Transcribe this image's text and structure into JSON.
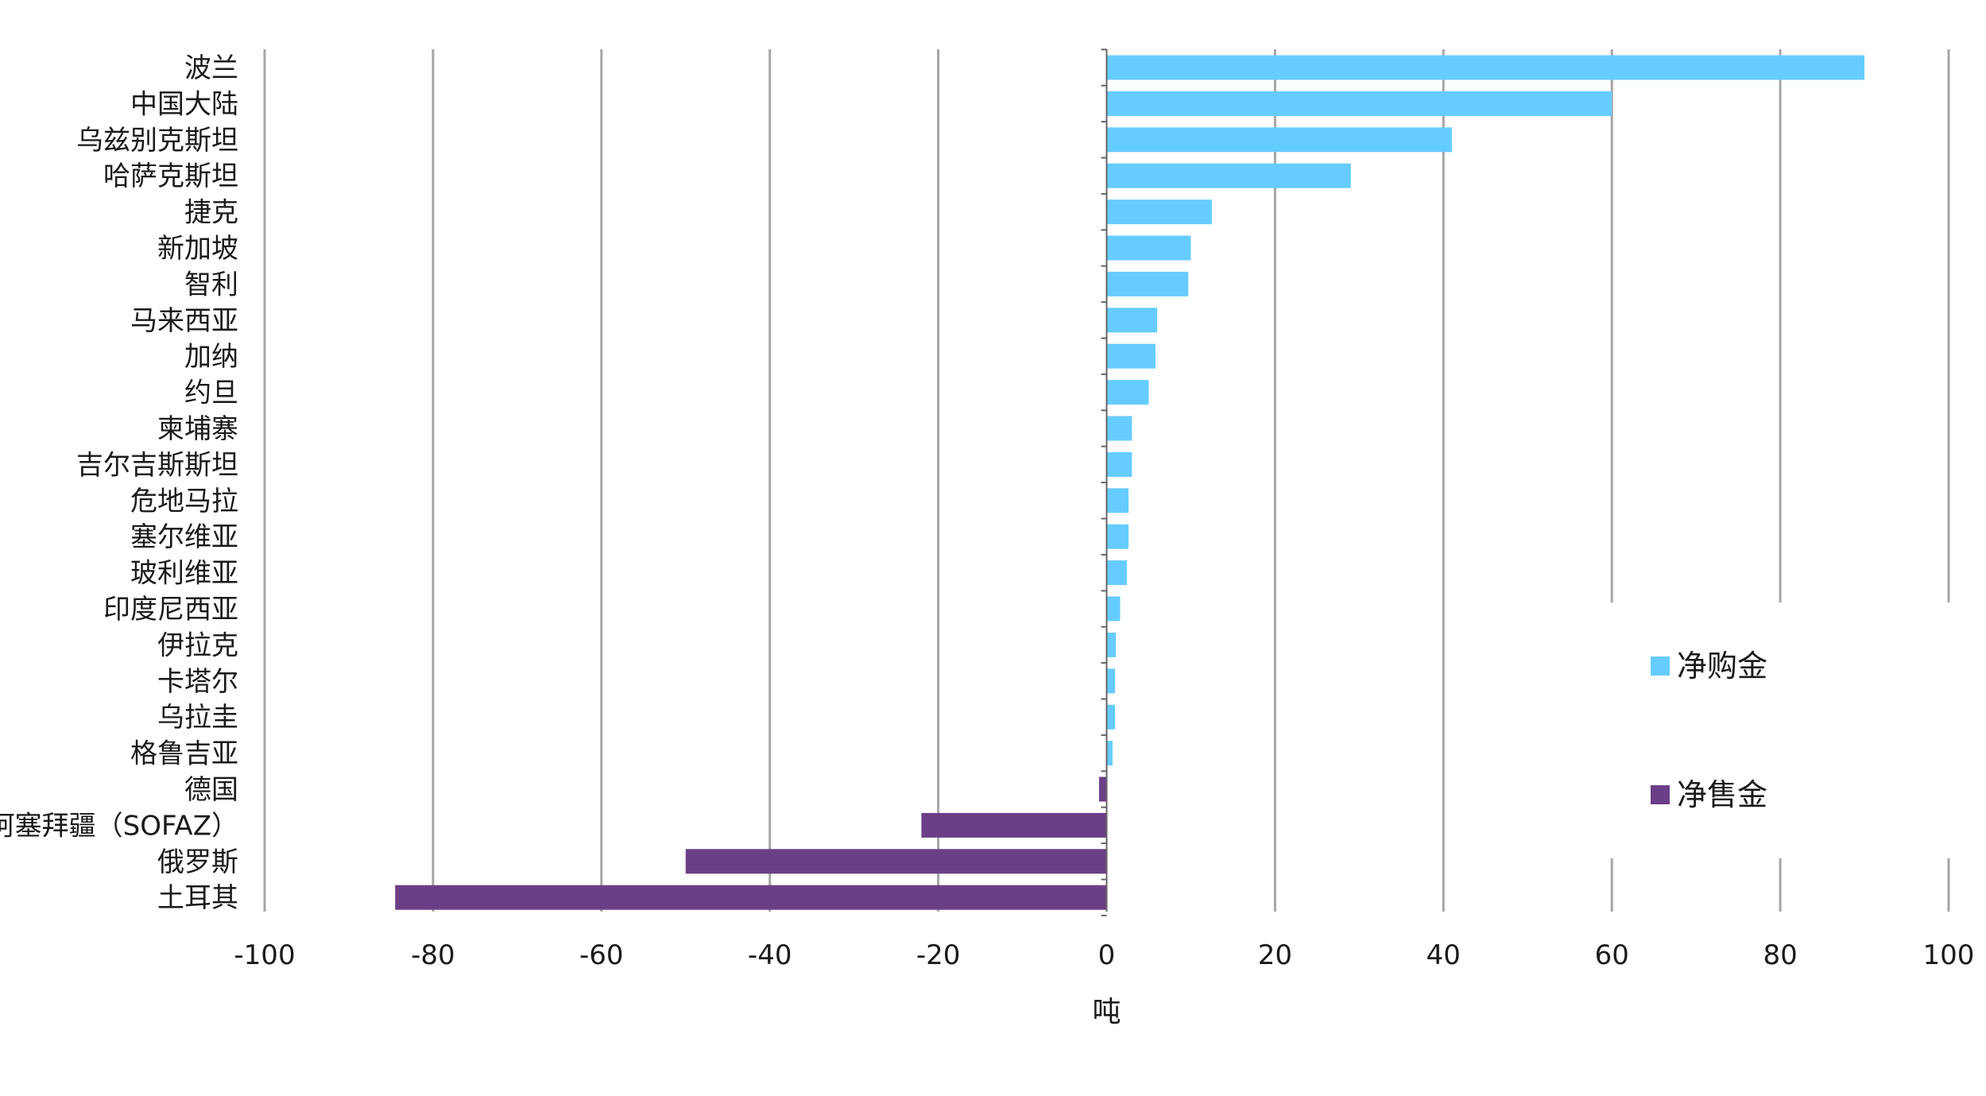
{
  "chart_data": {
    "type": "bar",
    "orientation": "horizontal",
    "title": "",
    "xlabel": "吨",
    "ylabel": "",
    "xlim": [
      -100,
      100
    ],
    "xticks": [
      -100,
      -80,
      -60,
      -40,
      -20,
      0,
      20,
      40,
      60,
      80,
      100
    ],
    "xtick_labels": [
      "-100",
      "-80",
      "-60",
      "-40",
      "-20",
      "0",
      "20",
      "40",
      "60",
      "80",
      "100"
    ],
    "grid": "vertical",
    "legend_position": "right",
    "categories": [
      "波兰",
      "中国大陆",
      "乌兹别克斯坦",
      "哈萨克斯坦",
      "捷克",
      "新加坡",
      "智利",
      "马来西亚",
      "加纳",
      "约旦",
      "柬埔寨",
      "吉尔吉斯斯坦",
      "危地马拉",
      "塞尔维亚",
      "玻利维亚",
      "印度尼西亚",
      "伊拉克",
      "卡塔尔",
      "乌拉圭",
      "格鲁吉亚",
      "德国",
      "阿塞拜疆（SOFAZ）",
      "俄罗斯",
      "土耳其"
    ],
    "values": [
      90,
      60,
      41,
      29,
      12.5,
      10,
      9.7,
      6,
      5.8,
      5,
      3,
      3,
      2.6,
      2.6,
      2.4,
      1.6,
      1.1,
      1,
      1,
      0.7,
      -0.9,
      -22,
      -50,
      -84.5
    ],
    "series": [
      {
        "name": "净购金",
        "color": "#66CCFF"
      },
      {
        "name": "净售金",
        "color": "#6B3F87"
      }
    ],
    "grid_color": "#a6a6a6",
    "axis_color": "#666666"
  }
}
